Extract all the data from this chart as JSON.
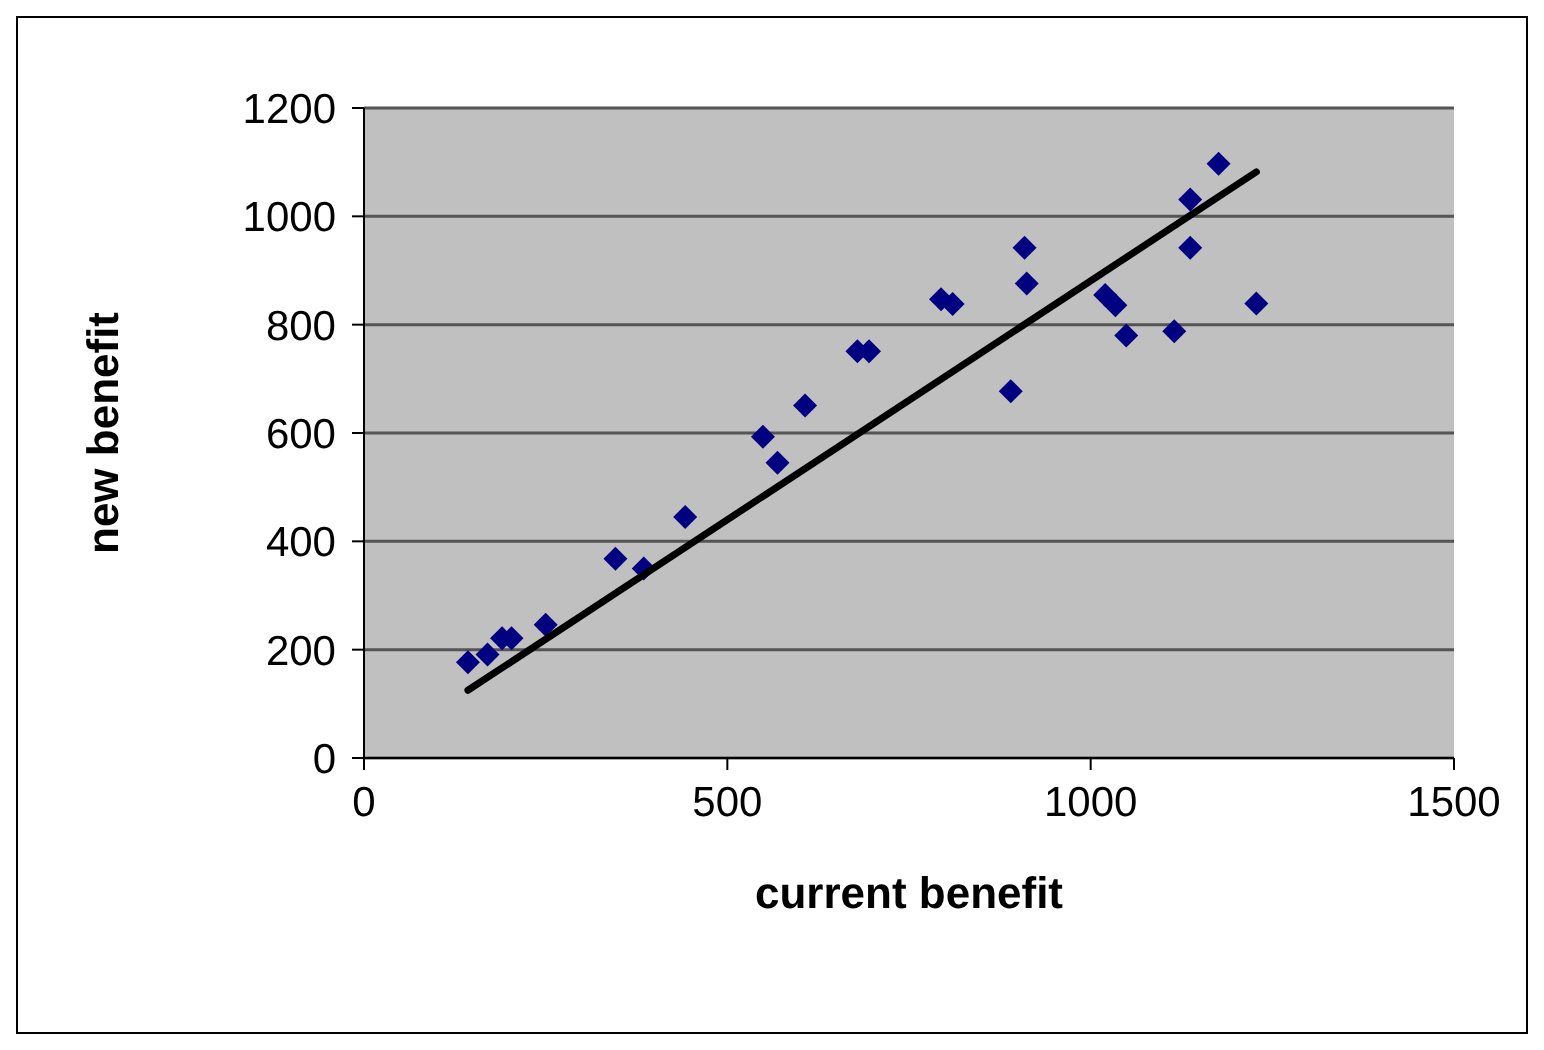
{
  "chart_data": {
    "type": "scatter",
    "xlabel": "current benefit",
    "ylabel": "new benefit",
    "xlim": [
      0,
      1500
    ],
    "xticks": [
      0,
      500,
      1000,
      1500
    ],
    "ylim": [
      0,
      1200
    ],
    "yticks": [
      0,
      200,
      400,
      600,
      800,
      1000,
      1200
    ],
    "grid": "y",
    "marker": "diamond",
    "legend": false,
    "series": [
      {
        "color": "#000080",
        "x": [
          143,
          170,
          190,
          203,
          250,
          346,
          385,
          442,
          549,
          569,
          607,
          679,
          695,
          794,
          810,
          890,
          909,
          912,
          1020,
          1034,
          1049,
          1115,
          1137,
          1137,
          1176,
          1228
        ],
        "values": [
          177,
          191,
          221,
          221,
          246,
          368,
          350,
          445,
          593,
          545,
          651,
          751,
          751,
          847,
          838,
          677,
          942,
          876,
          855,
          836,
          780,
          788,
          1031,
          942,
          1097,
          839
        ]
      },
      {
        "type": "line",
        "color": "#000000",
        "marker": "none",
        "line_style": "solid",
        "x": [
          143,
          1228
        ],
        "values": [
          125,
          1082
        ]
      }
    ]
  }
}
